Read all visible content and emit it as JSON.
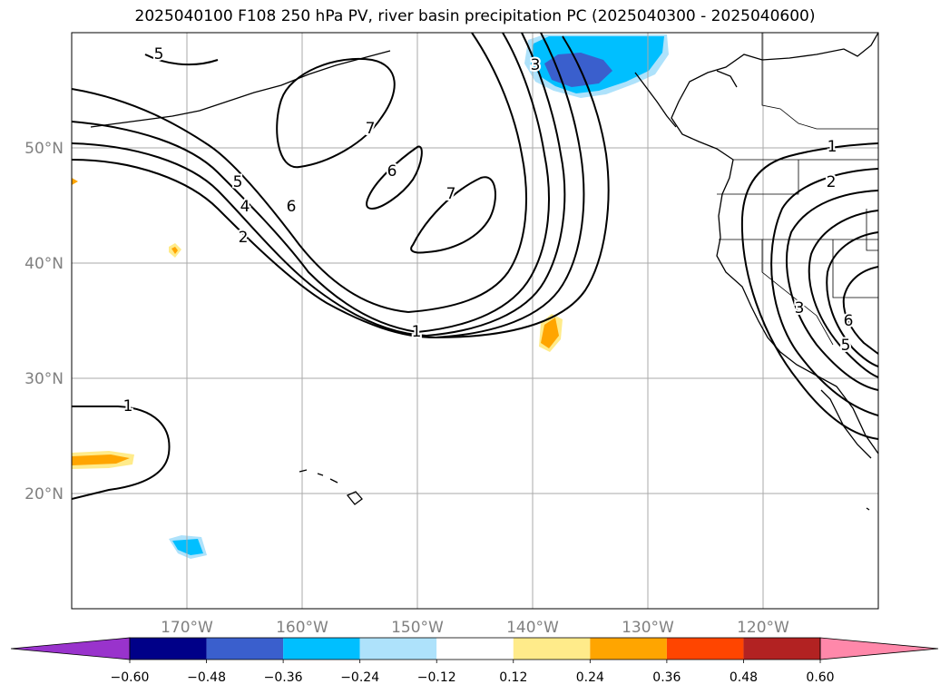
{
  "title": "2025040100 F108 250 hPa PV, river basin precipitation PC (2025040300 - 2025040600)",
  "map": {
    "lon_range": [
      -180,
      -110
    ],
    "lat_range": [
      10,
      60
    ],
    "lon_ticks": [
      {
        "lon": -170,
        "label": "170°W"
      },
      {
        "lon": -160,
        "label": "160°W"
      },
      {
        "lon": -150,
        "label": "150°W"
      },
      {
        "lon": -140,
        "label": "140°W"
      },
      {
        "lon": -130,
        "label": "130°W"
      },
      {
        "lon": -120,
        "label": "120°W"
      }
    ],
    "lat_ticks": [
      {
        "lat": 20,
        "label": "20°N"
      },
      {
        "lat": 30,
        "label": "30°N"
      },
      {
        "lat": 40,
        "label": "40°N"
      },
      {
        "lat": 50,
        "label": "50°N"
      }
    ],
    "grid": true,
    "contour_labels": [
      "5",
      "7",
      "6",
      "7",
      "5",
      "4",
      "6",
      "2",
      "1",
      "1",
      "1",
      "2",
      "3",
      "6",
      "5",
      "3"
    ]
  },
  "colorbar": {
    "colors": [
      "#9933cc",
      "#000088",
      "#3a5fcd",
      "#00bfff",
      "#aee2fb",
      "#ffffff",
      "#ffeb8a",
      "#ffa500",
      "#ff4500",
      "#b22222",
      "#ff88aa"
    ],
    "tick_labels": [
      "−0.60",
      "−0.48",
      "−0.36",
      "−0.24",
      "−0.12",
      "0.12",
      "0.24",
      "0.36",
      "0.48",
      "0.60"
    ]
  }
}
